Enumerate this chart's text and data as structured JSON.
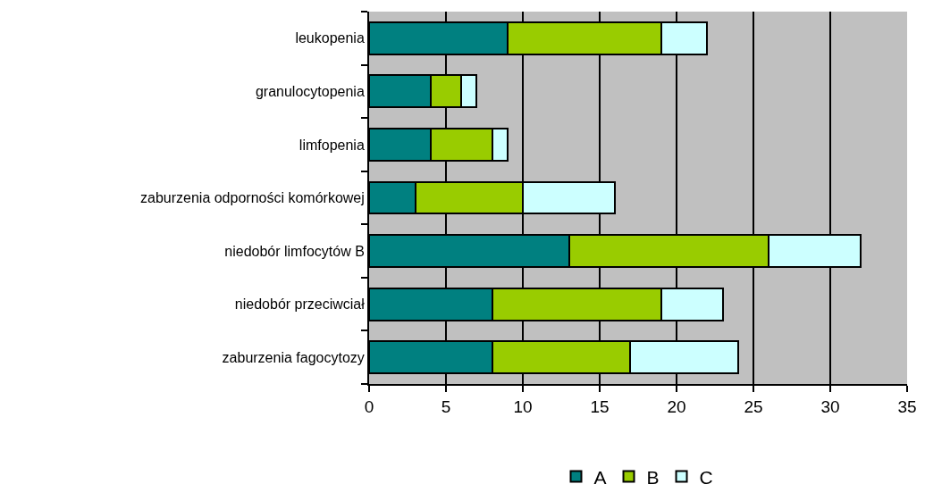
{
  "chart_data": {
    "type": "bar",
    "orientation": "horizontal",
    "stacked": true,
    "categories": [
      "leukopenia",
      "granulocytopenia",
      "limfopenia",
      "zaburzenia odporności komórkowej",
      "niedobór limfocytów B",
      "niedobór przeciwciał",
      "zaburzenia fagocytozy"
    ],
    "series": [
      {
        "name": "A",
        "color": "#008080",
        "values": [
          9,
          4,
          4,
          3,
          13,
          8,
          8
        ]
      },
      {
        "name": "B",
        "color": "#99cc00",
        "values": [
          10,
          2,
          4,
          7,
          13,
          11,
          9
        ]
      },
      {
        "name": "C",
        "color": "#ccffff",
        "values": [
          3,
          1,
          1,
          6,
          6,
          4,
          7
        ]
      }
    ],
    "xlim": [
      0,
      35
    ],
    "xticks": [
      0,
      5,
      10,
      15,
      20,
      25,
      30,
      35
    ],
    "grid": "x",
    "legend": "bottom"
  }
}
